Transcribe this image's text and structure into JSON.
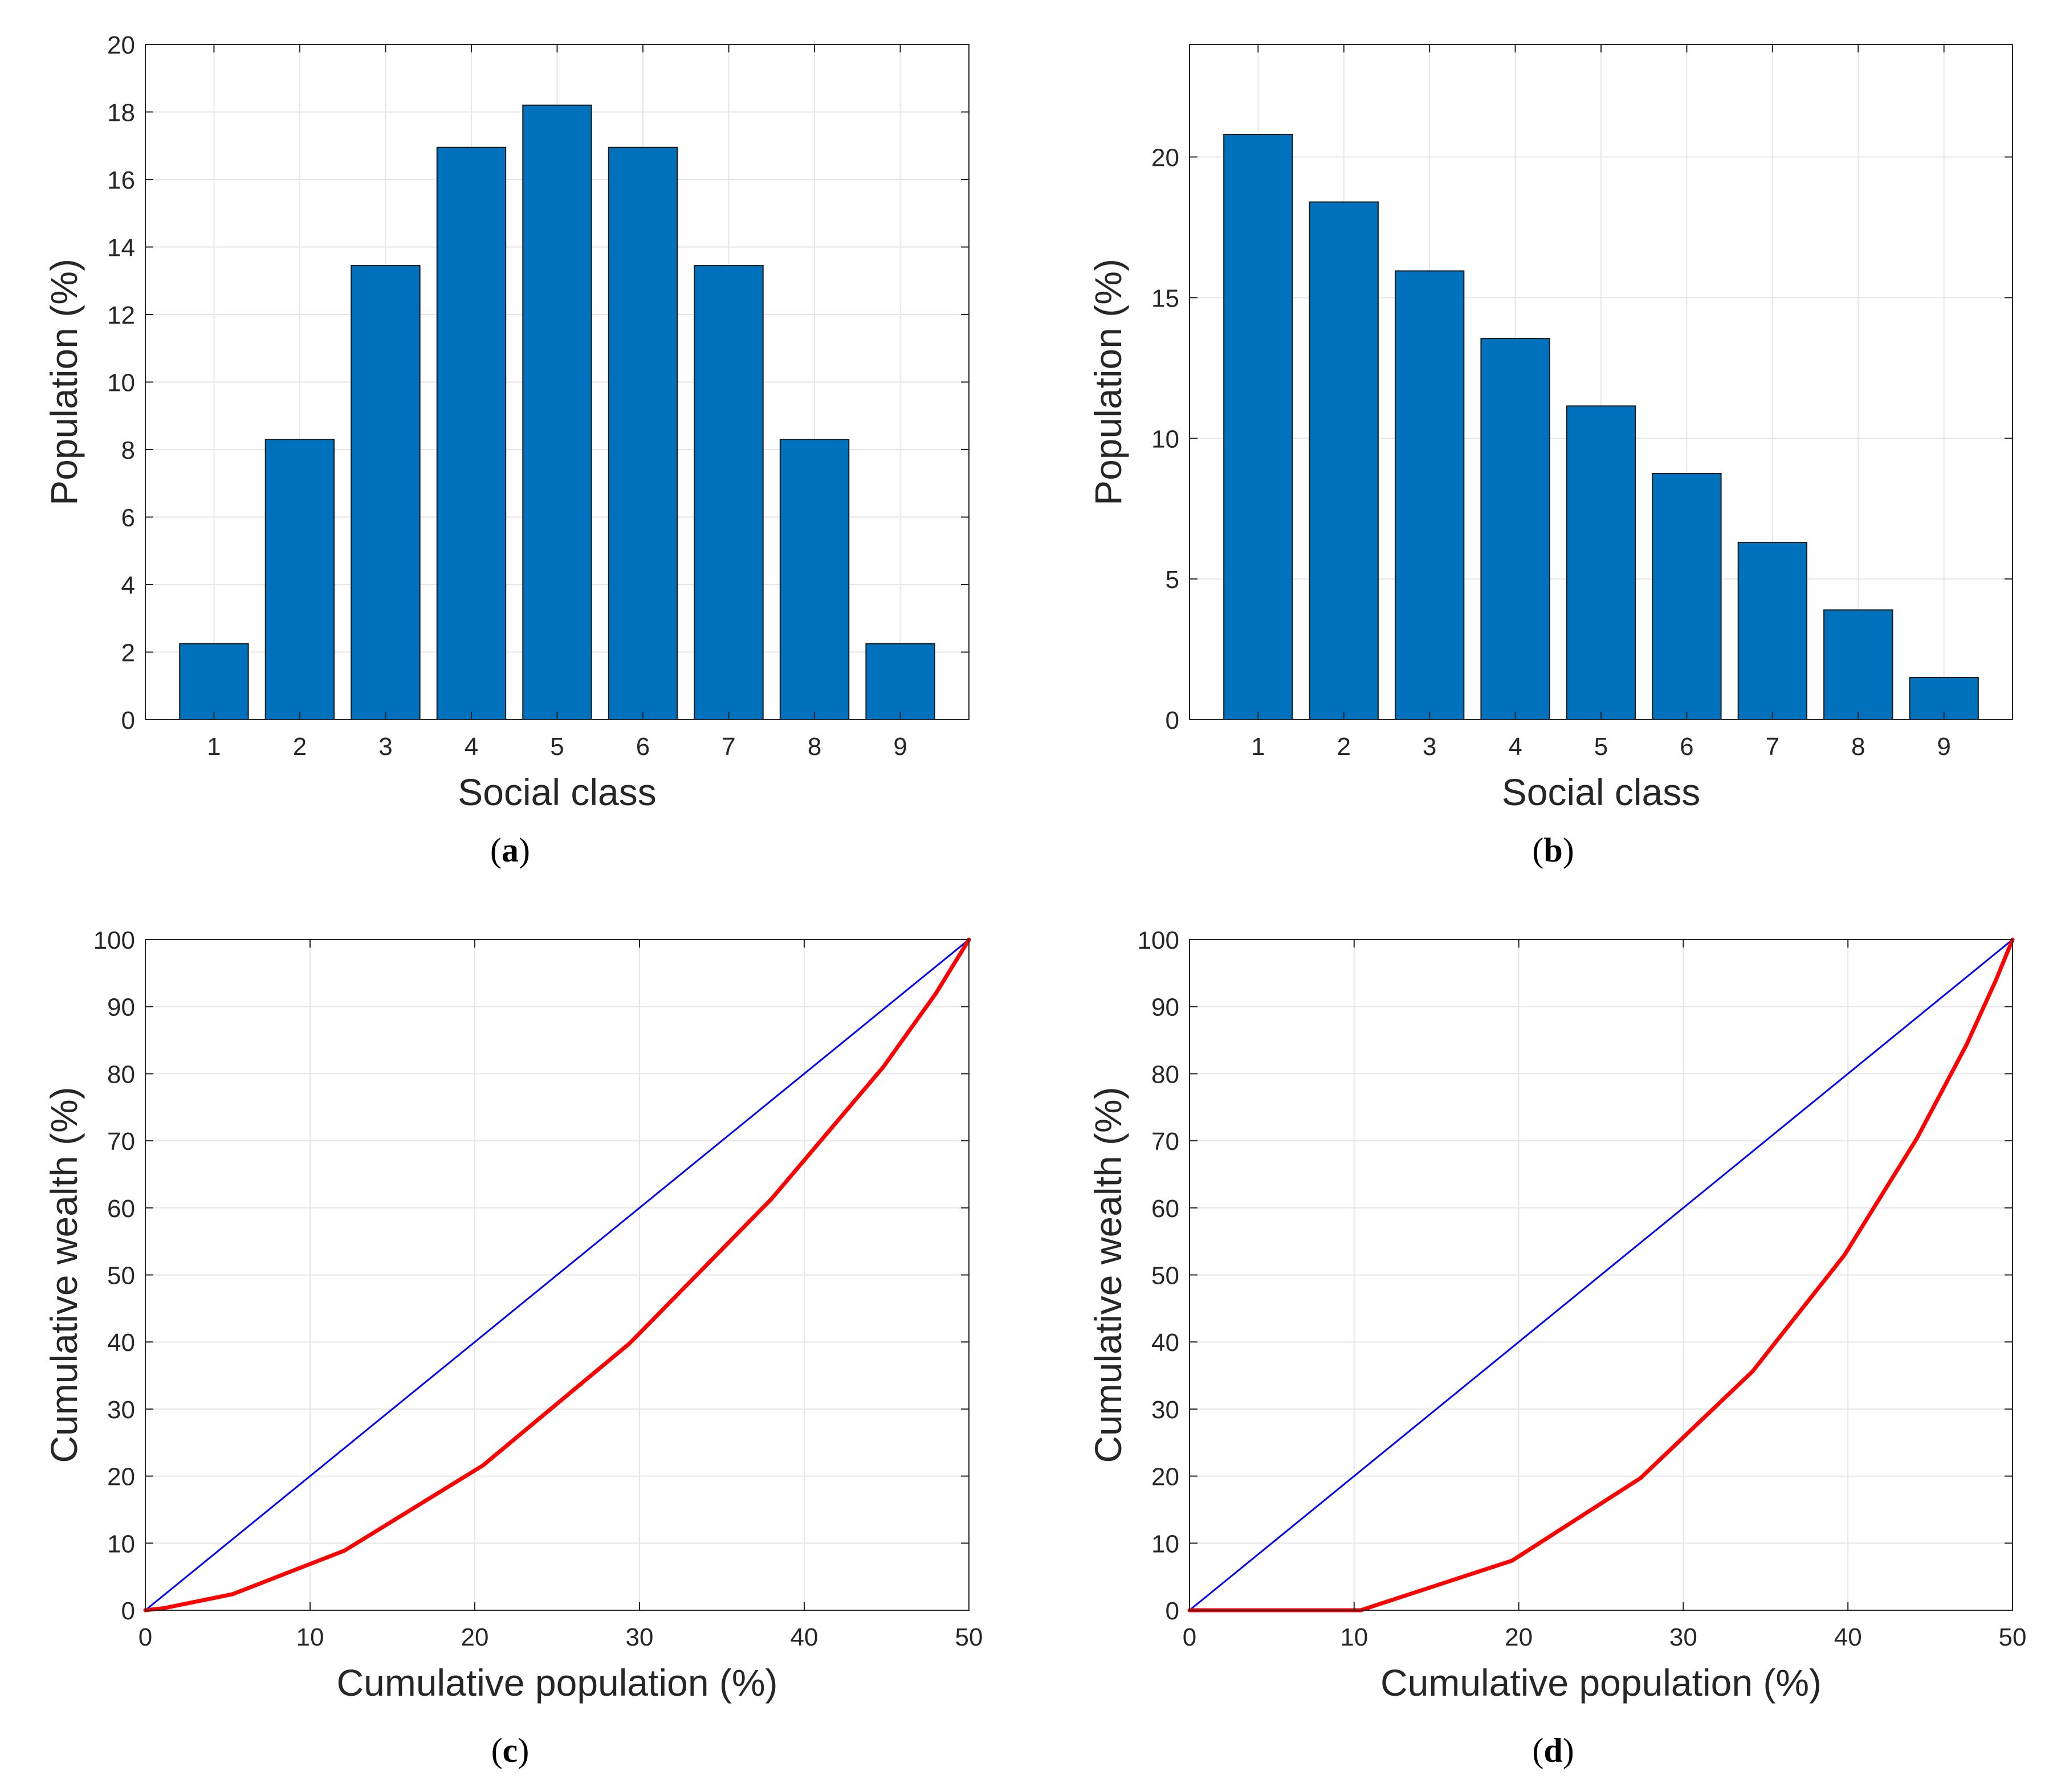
{
  "colors": {
    "bar_fill": "#0072bd",
    "bar_edge": "#1a1a1a",
    "equality_line": "#0000ff",
    "lorenz_curve": "#ff0000",
    "grid": "#e6e6e6",
    "axis": "#262626"
  },
  "chart_data": [
    {
      "id": "a",
      "panel_label": "a",
      "type": "bar",
      "xlabel": "Social class",
      "ylabel": "Population (%)",
      "categories": [
        "1",
        "2",
        "3",
        "4",
        "5",
        "6",
        "7",
        "8",
        "9"
      ],
      "values": [
        2.25,
        8.3,
        13.45,
        16.95,
        18.2,
        16.95,
        13.45,
        8.3,
        2.25
      ],
      "xlim": [
        0.2,
        9.8
      ],
      "ylim": [
        0,
        20
      ],
      "yticks": [
        "0",
        "2",
        "4",
        "6",
        "8",
        "10",
        "12",
        "14",
        "16",
        "18",
        "20"
      ],
      "grid": true
    },
    {
      "id": "b",
      "panel_label": "b",
      "type": "bar",
      "xlabel": "Social class",
      "ylabel": "Population (%)",
      "categories": [
        "1",
        "2",
        "3",
        "4",
        "5",
        "6",
        "7",
        "8",
        "9"
      ],
      "values": [
        20.8,
        18.4,
        15.95,
        13.55,
        11.15,
        8.75,
        6.3,
        3.9,
        1.5
      ],
      "xlim": [
        0.2,
        9.8
      ],
      "ylim": [
        0,
        24
      ],
      "yticks": [
        "0",
        "5",
        "10",
        "15",
        "20"
      ],
      "grid": true
    },
    {
      "id": "c",
      "panel_label": "c",
      "type": "line",
      "xlabel": "Cumulative population (%)",
      "ylabel": "Cumulative wealth (%)",
      "xlim": [
        0,
        50
      ],
      "ylim": [
        0,
        100
      ],
      "xticks": [
        "0",
        "10",
        "20",
        "30",
        "40",
        "50"
      ],
      "yticks": [
        "0",
        "10",
        "20",
        "30",
        "40",
        "50",
        "60",
        "70",
        "80",
        "90",
        "100"
      ],
      "grid": true,
      "series": [
        {
          "color": "#0000ff",
          "width": 3,
          "x": [
            0,
            50
          ],
          "y": [
            0,
            100
          ]
        },
        {
          "color": "#ff0000",
          "width": 7,
          "x": [
            0,
            1.1,
            5.3,
            12.1,
            20.5,
            29.4,
            38.0,
            44.8,
            48.0,
            50.0
          ],
          "y": [
            0,
            0.3,
            2.4,
            8.9,
            21.6,
            39.8,
            61.3,
            81.0,
            92.0,
            100.0
          ]
        }
      ]
    },
    {
      "id": "d",
      "panel_label": "d",
      "type": "line",
      "xlabel": "Cumulative population (%)",
      "ylabel": "Cumulative wealth (%)",
      "xlim": [
        0,
        50
      ],
      "ylim": [
        0,
        100
      ],
      "xticks": [
        "0",
        "10",
        "20",
        "30",
        "40",
        "50"
      ],
      "yticks": [
        "0",
        "10",
        "20",
        "30",
        "40",
        "50",
        "60",
        "70",
        "80",
        "90",
        "100"
      ],
      "grid": true,
      "series": [
        {
          "color": "#0000ff",
          "width": 3,
          "x": [
            0,
            50
          ],
          "y": [
            0,
            100
          ]
        },
        {
          "color": "#ff0000",
          "width": 7,
          "x": [
            0,
            10.4,
            19.6,
            27.4,
            34.2,
            39.8,
            44.2,
            47.2,
            49.0,
            50.0
          ],
          "y": [
            0,
            0,
            7.4,
            19.7,
            35.6,
            53.0,
            70.4,
            84.3,
            94.0,
            100.0
          ]
        }
      ]
    }
  ]
}
